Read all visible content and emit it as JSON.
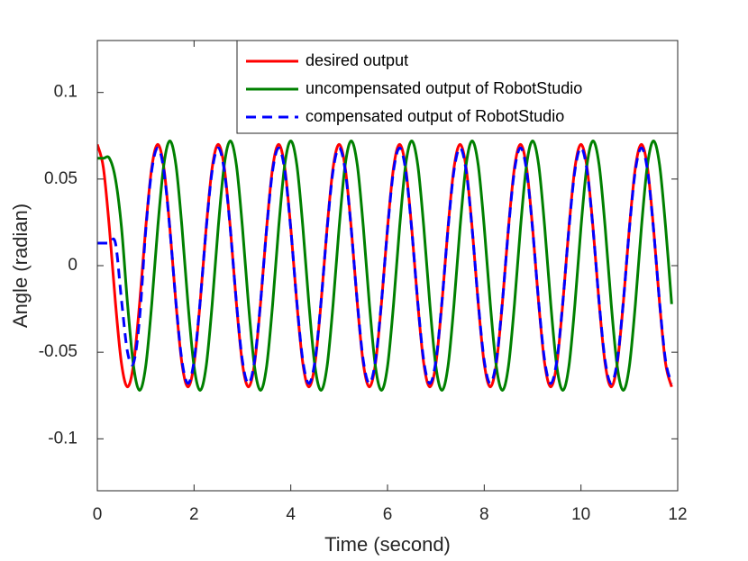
{
  "chart_data": {
    "type": "line",
    "x_label": "Time (second)",
    "y_label": "Angle (radian)",
    "xlim": [
      0,
      12
    ],
    "xticks": [
      0,
      2,
      4,
      6,
      8,
      10,
      12
    ],
    "ylim": [
      -0.13,
      0.13
    ],
    "yticks": [
      -0.1,
      -0.05,
      0,
      0.05,
      0.1
    ],
    "legend": "top-right",
    "x": [
      0,
      0.125,
      0.25,
      0.375,
      0.5,
      0.625,
      0.75,
      0.875,
      1,
      1.125,
      1.25,
      1.375,
      1.5,
      1.625,
      1.75,
      1.875,
      2,
      2.125,
      2.25,
      2.375,
      2.5,
      2.625,
      2.75,
      2.875,
      3,
      3.125,
      3.25,
      3.375,
      3.5,
      3.625,
      3.75,
      3.875,
      4,
      4.125,
      4.25,
      4.375,
      4.5,
      4.625,
      4.75,
      4.875,
      5,
      5.125,
      5.25,
      5.375,
      5.5,
      5.625,
      5.75,
      5.875,
      6,
      6.125,
      6.25,
      6.375,
      6.5,
      6.625,
      6.75,
      6.875,
      7,
      7.125,
      7.25,
      7.375,
      7.5,
      7.625,
      7.75,
      7.875,
      8,
      8.125,
      8.25,
      8.375,
      8.5,
      8.625,
      8.75,
      8.875,
      9,
      9.125,
      9.25,
      9.375,
      9.5,
      9.625,
      9.75,
      9.875,
      10,
      10.125,
      10.25,
      10.375,
      10.5,
      10.625,
      10.75,
      10.875,
      11,
      11.125,
      11.25,
      11.375,
      11.5,
      11.625,
      11.75,
      11.875
    ],
    "series": [
      {
        "name": "desired output",
        "color": "#ff0000",
        "dash": false,
        "values": [
          0.07,
          0.0566,
          0.0216,
          -0.0216,
          -0.0566,
          -0.07,
          -0.0566,
          -0.0216,
          0.0216,
          0.0566,
          0.07,
          0.0566,
          0.0216,
          -0.0216,
          -0.0566,
          -0.07,
          -0.0566,
          -0.0216,
          0.0216,
          0.0566,
          0.07,
          0.0566,
          0.0216,
          -0.0216,
          -0.0566,
          -0.07,
          -0.0566,
          -0.0216,
          0.0216,
          0.0566,
          0.07,
          0.0566,
          0.0216,
          -0.0216,
          -0.0566,
          -0.07,
          -0.0566,
          -0.0216,
          0.0216,
          0.0566,
          0.07,
          0.0566,
          0.0216,
          -0.0216,
          -0.0566,
          -0.07,
          -0.0566,
          -0.0216,
          0.0216,
          0.0566,
          0.07,
          0.0566,
          0.0216,
          -0.0216,
          -0.0566,
          -0.07,
          -0.0566,
          -0.0216,
          0.0216,
          0.0566,
          0.07,
          0.0566,
          0.0216,
          -0.0216,
          -0.0566,
          -0.07,
          -0.0566,
          -0.0216,
          0.0216,
          0.0566,
          0.07,
          0.0566,
          0.0216,
          -0.0216,
          -0.0566,
          -0.07,
          -0.0566,
          -0.0216,
          0.0216,
          0.0566,
          0.07,
          0.0566,
          0.0216,
          -0.0216,
          -0.0566,
          -0.07,
          -0.0566,
          -0.0216,
          0.0216,
          0.0566,
          0.07,
          0.0566,
          0.0216,
          -0.0216,
          -0.0566,
          -0.07
        ]
      },
      {
        "name": "uncompensated output of RobotStudio",
        "color": "#008000",
        "dash": false,
        "values": [
          0.062,
          0.062,
          0.062,
          0.05,
          0.022,
          -0.0222,
          -0.0582,
          -0.072,
          -0.0582,
          -0.0222,
          0.0222,
          0.0582,
          0.072,
          0.0582,
          0.0222,
          -0.0222,
          -0.0582,
          -0.072,
          -0.0582,
          -0.0222,
          0.0222,
          0.0582,
          0.072,
          0.0582,
          0.0222,
          -0.0222,
          -0.0582,
          -0.072,
          -0.0582,
          -0.0222,
          0.0222,
          0.0582,
          0.072,
          0.0582,
          0.0222,
          -0.0222,
          -0.0582,
          -0.072,
          -0.0582,
          -0.0222,
          0.0222,
          0.0582,
          0.072,
          0.0582,
          0.0222,
          -0.0222,
          -0.0582,
          -0.072,
          -0.0582,
          -0.0222,
          0.0222,
          0.0582,
          0.072,
          0.0582,
          0.0222,
          -0.0222,
          -0.0582,
          -0.072,
          -0.0582,
          -0.0222,
          0.0222,
          0.0582,
          0.072,
          0.0582,
          0.0222,
          -0.0222,
          -0.0582,
          -0.072,
          -0.0582,
          -0.0222,
          0.0222,
          0.0582,
          0.072,
          0.0582,
          0.0222,
          -0.0222,
          -0.0582,
          -0.072,
          -0.0582,
          -0.0222,
          0.0222,
          0.0582,
          0.072,
          0.0582,
          0.0222,
          -0.0222,
          -0.0582,
          -0.072,
          -0.0582,
          -0.0222,
          0.0222,
          0.0582,
          0.072,
          0.0582,
          0.0222,
          -0.0222
        ]
      },
      {
        "name": "compensated output of RobotStudio",
        "color": "#0000ff",
        "dash": true,
        "values": [
          0.013,
          0.013,
          0.013,
          0.013,
          -0.02,
          -0.05,
          -0.056,
          -0.03,
          0.02,
          0.055,
          0.068,
          0.055,
          0.021,
          -0.021,
          -0.055,
          -0.068,
          -0.055,
          -0.021,
          0.021,
          0.055,
          0.068,
          0.055,
          0.021,
          -0.021,
          -0.055,
          -0.068,
          -0.055,
          -0.021,
          0.021,
          0.055,
          0.068,
          0.055,
          0.021,
          -0.021,
          -0.055,
          -0.068,
          -0.055,
          -0.021,
          0.021,
          0.055,
          0.068,
          0.055,
          0.021,
          -0.021,
          -0.055,
          -0.068,
          -0.055,
          -0.021,
          0.021,
          0.055,
          0.068,
          0.055,
          0.021,
          -0.021,
          -0.055,
          -0.068,
          -0.055,
          -0.021,
          0.021,
          0.055,
          0.068,
          0.055,
          0.021,
          -0.021,
          -0.055,
          -0.068,
          -0.055,
          -0.021,
          0.021,
          0.055,
          0.068,
          0.055,
          0.021,
          -0.021,
          -0.055,
          -0.068,
          -0.055,
          -0.021,
          0.021,
          0.055,
          0.068,
          0.055,
          0.021,
          -0.021,
          -0.055,
          -0.068,
          -0.055,
          -0.021,
          0.021,
          0.055,
          0.068,
          0.055,
          0.021,
          -0.021,
          -0.055,
          -0.068
        ]
      }
    ]
  }
}
